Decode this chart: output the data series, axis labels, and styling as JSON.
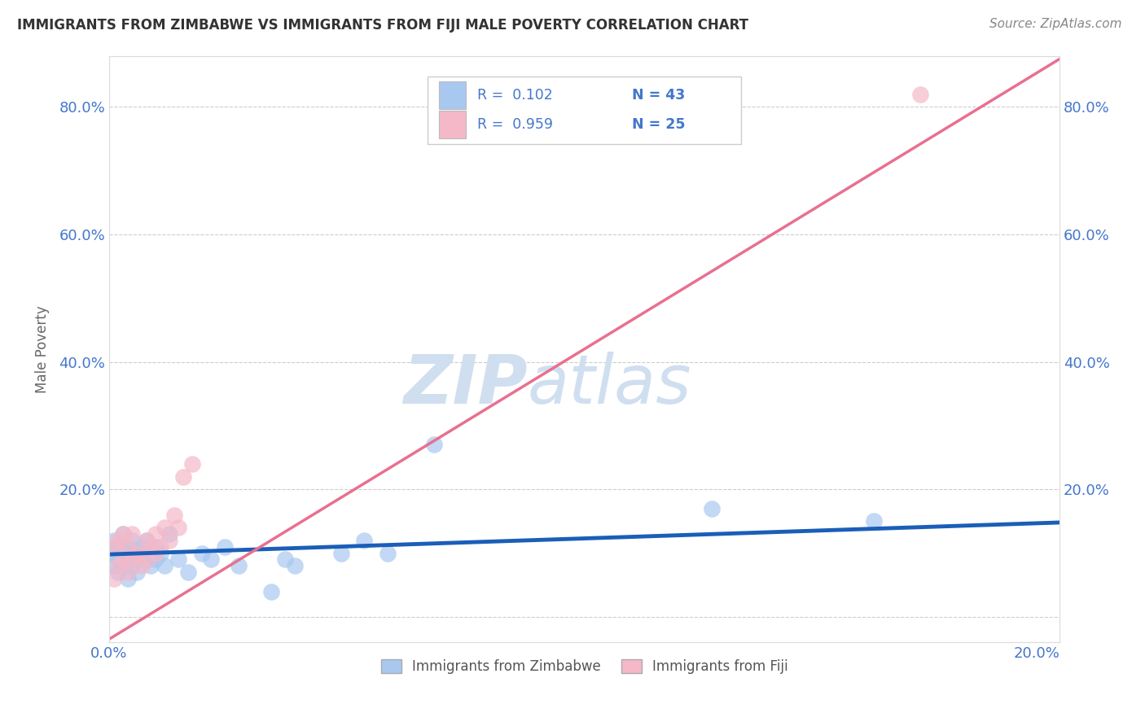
{
  "title": "IMMIGRANTS FROM ZIMBABWE VS IMMIGRANTS FROM FIJI MALE POVERTY CORRELATION CHART",
  "source": "Source: ZipAtlas.com",
  "ylabel": "Male Poverty",
  "xlim": [
    0.0,
    0.205
  ],
  "ylim": [
    -0.04,
    0.88
  ],
  "xticks": [
    0.0,
    0.05,
    0.1,
    0.15,
    0.2
  ],
  "yticks": [
    0.0,
    0.2,
    0.4,
    0.6,
    0.8
  ],
  "xtick_labels": [
    "0.0%",
    "",
    "",
    "",
    "20.0%"
  ],
  "ytick_labels": [
    "",
    "20.0%",
    "40.0%",
    "60.0%",
    "80.0%"
  ],
  "legend_r1": "R =  0.102",
  "legend_n1": "N = 43",
  "legend_r2": "R =  0.959",
  "legend_n2": "N = 25",
  "zimbabwe_color": "#a8c8f0",
  "fiji_color": "#f5b8c8",
  "zimbabwe_line_color": "#1a5eb8",
  "fiji_line_color": "#e87090",
  "watermark_zip": "ZIP",
  "watermark_atlas": "atlas",
  "watermark_color": "#d0dff0",
  "background_color": "#ffffff",
  "title_color": "#333333",
  "axis_color": "#4477cc",
  "zimbabwe_x": [
    0.001,
    0.001,
    0.001,
    0.002,
    0.002,
    0.002,
    0.003,
    0.003,
    0.003,
    0.004,
    0.004,
    0.004,
    0.005,
    0.005,
    0.005,
    0.006,
    0.006,
    0.007,
    0.007,
    0.008,
    0.008,
    0.009,
    0.009,
    0.01,
    0.01,
    0.011,
    0.012,
    0.013,
    0.015,
    0.017,
    0.02,
    0.022,
    0.025,
    0.028,
    0.035,
    0.038,
    0.04,
    0.05,
    0.055,
    0.06,
    0.07,
    0.13,
    0.165
  ],
  "zimbabwe_y": [
    0.1,
    0.08,
    0.12,
    0.09,
    0.11,
    0.07,
    0.1,
    0.08,
    0.13,
    0.09,
    0.11,
    0.06,
    0.1,
    0.12,
    0.08,
    0.09,
    0.07,
    0.1,
    0.11,
    0.09,
    0.12,
    0.08,
    0.1,
    0.09,
    0.11,
    0.1,
    0.08,
    0.13,
    0.09,
    0.07,
    0.1,
    0.09,
    0.11,
    0.08,
    0.04,
    0.09,
    0.08,
    0.1,
    0.12,
    0.1,
    0.27,
    0.17,
    0.15
  ],
  "fiji_x": [
    0.001,
    0.001,
    0.002,
    0.002,
    0.003,
    0.003,
    0.004,
    0.004,
    0.005,
    0.005,
    0.006,
    0.007,
    0.008,
    0.008,
    0.009,
    0.01,
    0.01,
    0.011,
    0.012,
    0.013,
    0.014,
    0.015,
    0.016,
    0.018,
    0.175
  ],
  "fiji_y": [
    0.06,
    0.11,
    0.08,
    0.12,
    0.09,
    0.13,
    0.07,
    0.11,
    0.09,
    0.13,
    0.1,
    0.08,
    0.12,
    0.09,
    0.11,
    0.1,
    0.13,
    0.11,
    0.14,
    0.12,
    0.16,
    0.14,
    0.22,
    0.24,
    0.82
  ],
  "zim_trend_x": [
    0.0,
    0.205
  ],
  "zim_trend_y": [
    0.098,
    0.148
  ],
  "fiji_trend_x": [
    0.0,
    0.205
  ],
  "fiji_trend_y": [
    -0.035,
    0.875
  ]
}
